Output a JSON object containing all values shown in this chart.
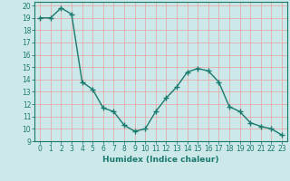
{
  "x": [
    0,
    1,
    2,
    3,
    4,
    5,
    6,
    7,
    8,
    9,
    10,
    11,
    12,
    13,
    14,
    15,
    16,
    17,
    18,
    19,
    20,
    21,
    22,
    23
  ],
  "y": [
    19.0,
    19.0,
    19.8,
    19.3,
    13.8,
    13.2,
    11.7,
    11.4,
    10.3,
    9.8,
    10.0,
    11.4,
    12.5,
    13.4,
    14.6,
    14.9,
    14.7,
    13.8,
    11.8,
    11.4,
    10.5,
    10.2,
    10.0,
    9.5
  ],
  "line_color": "#1a7a6e",
  "marker": "+",
  "marker_color": "#1a7a6e",
  "bg_color": "#cce8e8",
  "grid_color": "#e8a0a0",
  "xlabel": "Humidex (Indice chaleur)",
  "ylim": [
    9,
    20
  ],
  "xlim": [
    -0.5,
    23.5
  ],
  "yticks": [
    9,
    10,
    11,
    12,
    13,
    14,
    15,
    16,
    17,
    18,
    19,
    20
  ],
  "xticks": [
    0,
    1,
    2,
    3,
    4,
    5,
    6,
    7,
    8,
    9,
    10,
    11,
    12,
    13,
    14,
    15,
    16,
    17,
    18,
    19,
    20,
    21,
    22,
    23
  ],
  "tick_fontsize": 5.5,
  "label_fontsize": 6.5,
  "line_width": 1.0,
  "marker_size": 4
}
